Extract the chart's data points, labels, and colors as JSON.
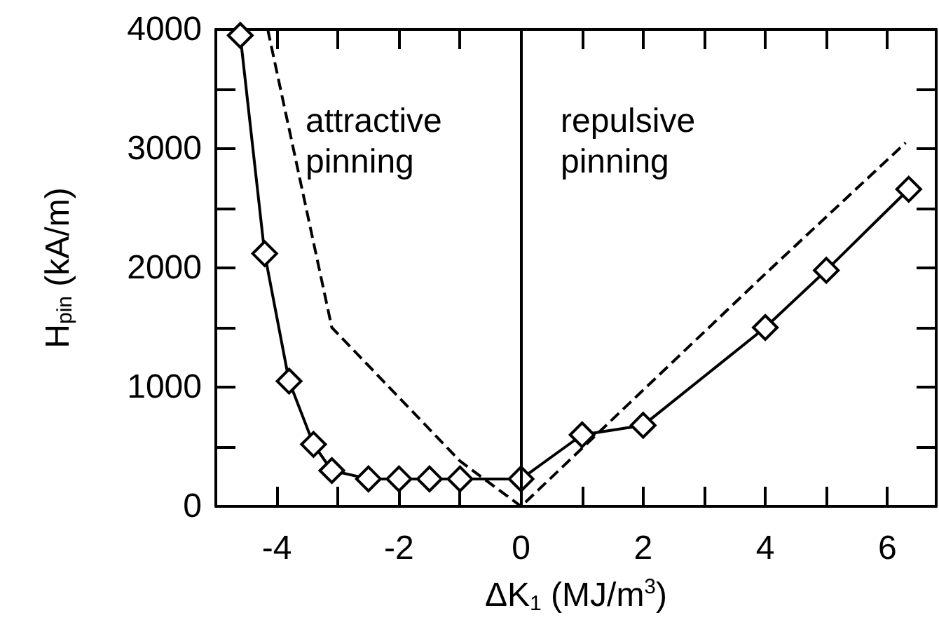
{
  "chart_data": {
    "type": "line",
    "xlabel": "ΔK$_{1}$ (MJ/m$^{3}$)",
    "ylabel": "H$_{pin}$ (kA/m)",
    "xlim": [
      -5,
      6.8
    ],
    "ylim": [
      0,
      4000
    ],
    "xticks": [
      {
        "value": -5,
        "label": null
      },
      -4,
      {
        "value": -3,
        "label": null
      },
      -2,
      {
        "value": -1,
        "label": null
      },
      0,
      {
        "value": 1,
        "label": null
      },
      2,
      {
        "value": 3,
        "label": null
      },
      4,
      {
        "value": 5,
        "label": null
      },
      6
    ],
    "yticks": [
      0,
      {
        "value": 500,
        "label": null
      },
      1000,
      {
        "value": 1500,
        "label": null
      },
      2000,
      {
        "value": 2500,
        "label": null
      },
      3000,
      {
        "value": 3500,
        "label": null
      },
      4000
    ],
    "grid": false,
    "legend": false,
    "series": [
      {
        "color": "#000000",
        "marker": "diamond",
        "line_style": "solid",
        "x": [
          -4.6,
          -4.2,
          -3.8,
          -3.4,
          -3.1,
          -2.5,
          -2,
          -1.5,
          -1,
          0,
          1,
          2,
          4,
          5,
          6.35
        ],
        "values": [
          3950,
          2120,
          1050,
          520,
          300,
          230,
          230,
          230,
          230,
          230,
          600,
          680,
          1500,
          1980,
          2660
        ]
      },
      {
        "color": "#000000",
        "marker": "none",
        "line_style": "dashed",
        "x": [
          -4.15,
          -3.1,
          -1,
          0,
          4,
          6.3
        ],
        "values": [
          4000,
          1500,
          380,
          0,
          1950,
          3050
        ]
      }
    ],
    "ref_lines": [
      {
        "axis": "x",
        "value": 0,
        "color": "#000000",
        "line_style": "solid"
      }
    ],
    "annotations": [
      "attractive pinning",
      "repulsive pinning"
    ]
  }
}
